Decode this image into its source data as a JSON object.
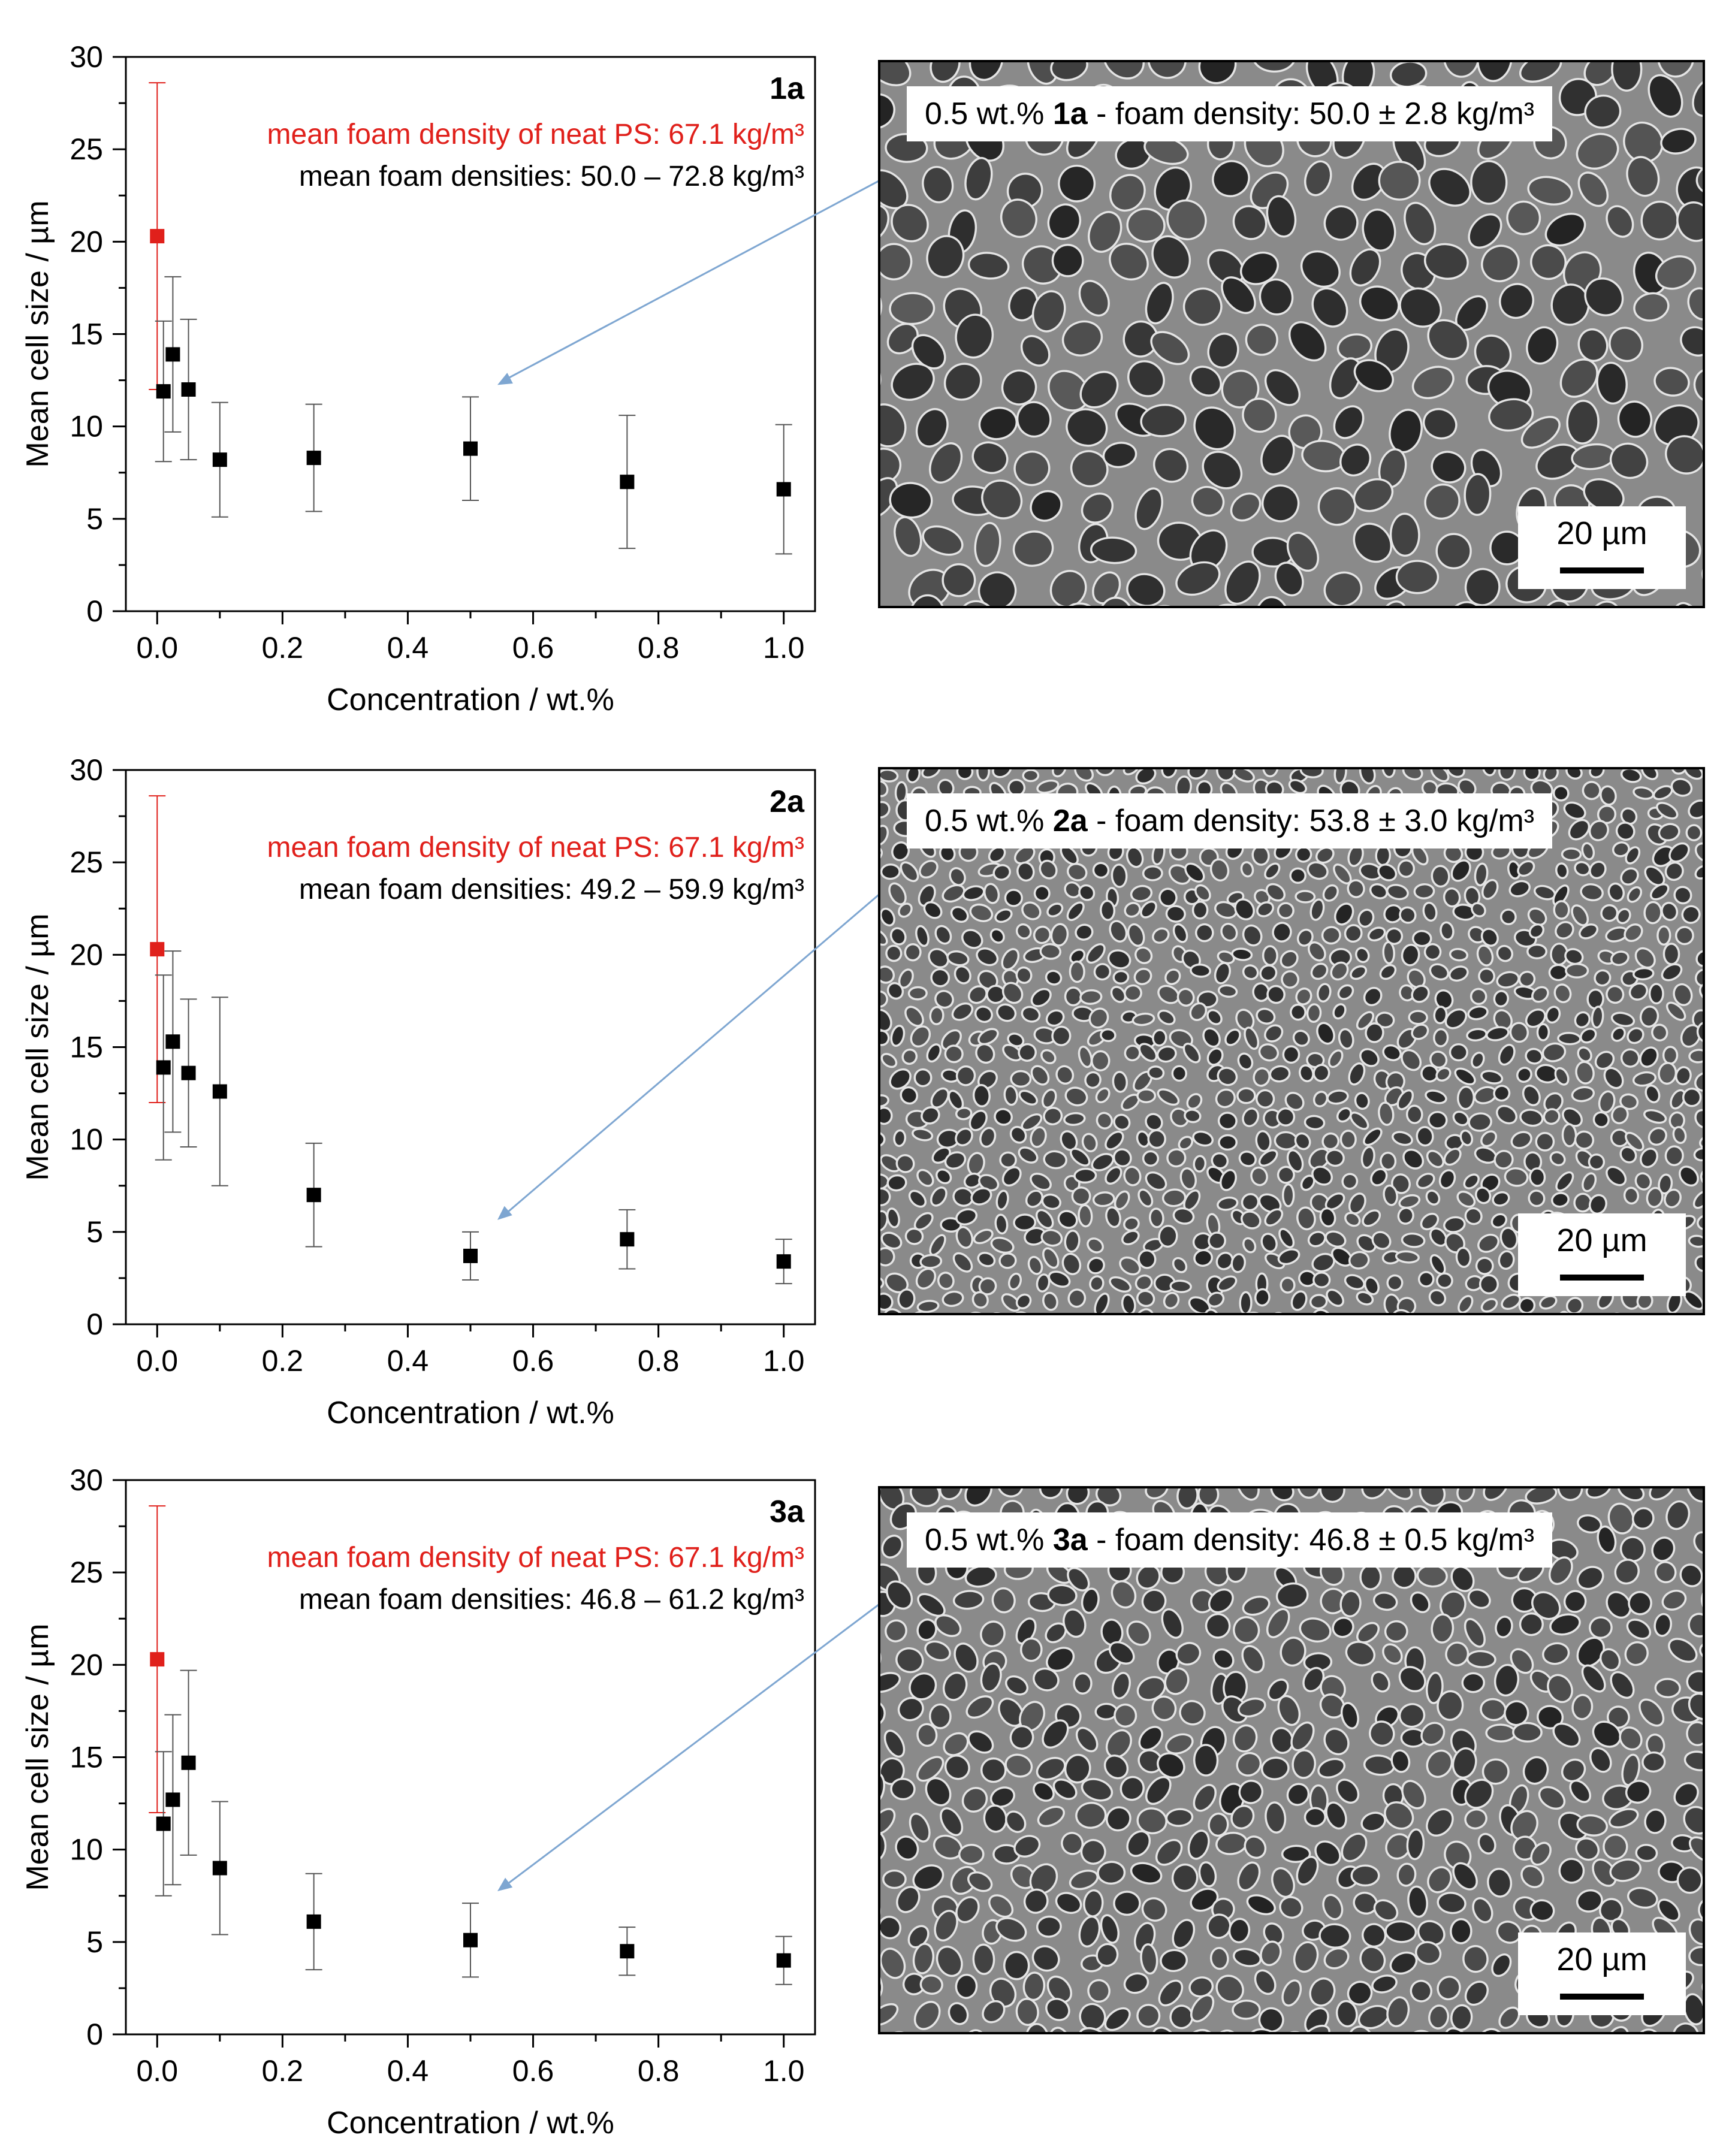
{
  "panels": [
    {
      "id": "1a",
      "chart_data": {
        "type": "scatter",
        "xlabel": "Concentration / wt.%",
        "ylabel": "Mean cell size / µm",
        "xlim": [
          -0.05,
          1.05
        ],
        "ylim": [
          0,
          30
        ],
        "x_ticks": [
          0.0,
          0.2,
          0.4,
          0.6,
          0.8,
          1.0
        ],
        "x_tick_labels": [
          "0.0",
          "0.2",
          "0.4",
          "0.6",
          "0.8",
          "1.0"
        ],
        "y_ticks": [
          0,
          5,
          10,
          15,
          20,
          25,
          30
        ],
        "y_tick_labels": [
          "0",
          "5",
          "10",
          "15",
          "20",
          "25",
          "30"
        ],
        "grid": false,
        "series": [
          {
            "name": "",
            "color": "#e0201b",
            "points": [
              {
                "x": 0.0,
                "y": 20.3,
                "err": 8.3
              }
            ]
          },
          {
            "name": "",
            "color": "#000000",
            "points": [
              {
                "x": 0.01,
                "y": 11.9,
                "err": 3.8
              },
              {
                "x": 0.025,
                "y": 13.9,
                "err": 4.2
              },
              {
                "x": 0.05,
                "y": 12.0,
                "err": 3.8
              },
              {
                "x": 0.1,
                "y": 8.2,
                "err": 3.1
              },
              {
                "x": 0.25,
                "y": 8.3,
                "err": 2.9
              },
              {
                "x": 0.5,
                "y": 8.8,
                "err": 2.8
              },
              {
                "x": 0.75,
                "y": 7.0,
                "err": 3.6
              },
              {
                "x": 1.0,
                "y": 6.6,
                "err": 3.5
              }
            ]
          }
        ],
        "annotations": {
          "label": "1a",
          "red_text": "mean foam density of neat PS: 67.1 kg/m³",
          "black_text": "mean foam densities: 50.0 – 72.8 kg/m³"
        }
      },
      "sem": {
        "prefix": "0.5 wt.% ",
        "bold": "1a",
        "suffix": " - foam density: 50.0 ± 2.8 kg/m³",
        "scale_label": "20 µm"
      }
    },
    {
      "id": "2a",
      "chart_data": {
        "type": "scatter",
        "xlabel": "Concentration / wt.%",
        "ylabel": "Mean cell size / µm",
        "xlim": [
          -0.05,
          1.05
        ],
        "ylim": [
          0,
          30
        ],
        "x_ticks": [
          0.0,
          0.2,
          0.4,
          0.6,
          0.8,
          1.0
        ],
        "x_tick_labels": [
          "0.0",
          "0.2",
          "0.4",
          "0.6",
          "0.8",
          "1.0"
        ],
        "y_ticks": [
          0,
          5,
          10,
          15,
          20,
          25,
          30
        ],
        "y_tick_labels": [
          "0",
          "5",
          "10",
          "15",
          "20",
          "25",
          "30"
        ],
        "grid": false,
        "series": [
          {
            "name": "",
            "color": "#e0201b",
            "points": [
              {
                "x": 0.0,
                "y": 20.3,
                "err": 8.3
              }
            ]
          },
          {
            "name": "",
            "color": "#000000",
            "points": [
              {
                "x": 0.01,
                "y": 13.9,
                "err": 5.0
              },
              {
                "x": 0.025,
                "y": 15.3,
                "err": 4.9
              },
              {
                "x": 0.05,
                "y": 13.6,
                "err": 4.0
              },
              {
                "x": 0.1,
                "y": 12.6,
                "err": 5.1
              },
              {
                "x": 0.25,
                "y": 7.0,
                "err": 2.8
              },
              {
                "x": 0.5,
                "y": 3.7,
                "err": 1.3
              },
              {
                "x": 0.75,
                "y": 4.6,
                "err": 1.6
              },
              {
                "x": 1.0,
                "y": 3.4,
                "err": 1.2
              }
            ]
          }
        ],
        "annotations": {
          "label": "2a",
          "red_text": "mean foam density of neat PS: 67.1 kg/m³",
          "black_text": "mean foam densities: 49.2 – 59.9 kg/m³"
        }
      },
      "sem": {
        "prefix": "0.5 wt.% ",
        "bold": "2a",
        "suffix": " - foam density: 53.8 ± 3.0 kg/m³",
        "scale_label": "20 µm"
      }
    },
    {
      "id": "3a",
      "chart_data": {
        "type": "scatter",
        "xlabel": "Concentration / wt.%",
        "ylabel": "Mean cell size / µm",
        "xlim": [
          -0.05,
          1.05
        ],
        "ylim": [
          0,
          30
        ],
        "x_ticks": [
          0.0,
          0.2,
          0.4,
          0.6,
          0.8,
          1.0
        ],
        "x_tick_labels": [
          "0.0",
          "0.2",
          "0.4",
          "0.6",
          "0.8",
          "1.0"
        ],
        "y_ticks": [
          0,
          5,
          10,
          15,
          20,
          25,
          30
        ],
        "y_tick_labels": [
          "0",
          "5",
          "10",
          "15",
          "20",
          "25",
          "30"
        ],
        "grid": false,
        "series": [
          {
            "name": "",
            "color": "#e0201b",
            "points": [
              {
                "x": 0.0,
                "y": 20.3,
                "err": 8.3
              }
            ]
          },
          {
            "name": "",
            "color": "#000000",
            "points": [
              {
                "x": 0.01,
                "y": 11.4,
                "err": 3.9
              },
              {
                "x": 0.025,
                "y": 12.7,
                "err": 4.6
              },
              {
                "x": 0.05,
                "y": 14.7,
                "err": 5.0
              },
              {
                "x": 0.1,
                "y": 9.0,
                "err": 3.6
              },
              {
                "x": 0.25,
                "y": 6.1,
                "err": 2.6
              },
              {
                "x": 0.5,
                "y": 5.1,
                "err": 2.0
              },
              {
                "x": 0.75,
                "y": 4.5,
                "err": 1.3
              },
              {
                "x": 1.0,
                "y": 4.0,
                "err": 1.3
              }
            ]
          }
        ],
        "annotations": {
          "label": "3a",
          "red_text": "mean foam density of neat PS: 67.1 kg/m³",
          "black_text": "mean foam densities: 46.8 – 61.2 kg/m³"
        }
      },
      "sem": {
        "prefix": "0.5 wt.% ",
        "bold": "3a",
        "suffix": " - foam density: 46.8 ± 0.5 kg/m³",
        "scale_label": "20 µm"
      }
    }
  ],
  "colors": {
    "neat_ps": "#e0201b",
    "samples": "#000000",
    "arrow": "#7ea6d1"
  }
}
